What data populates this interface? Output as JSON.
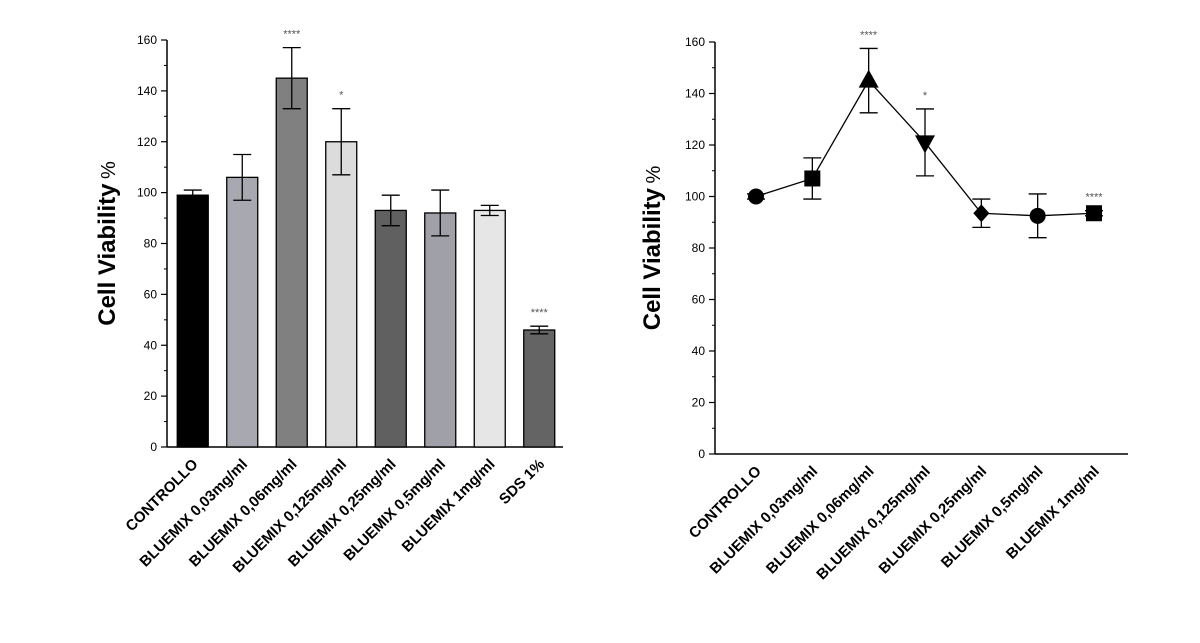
{
  "chart_data": [
    {
      "type": "bar",
      "ylabel": "Cell Viability",
      "ylabel_unit": "%",
      "ylim": [
        0,
        160
      ],
      "yticks": [
        "0",
        "20",
        "40",
        "60",
        "80",
        "100",
        "120",
        "140",
        "160"
      ],
      "categories": [
        "CONTROLLO",
        "BLUEMIX 0,03mg/ml",
        "BLUEMIX 0,06mg/ml",
        "BLUEMIX 0,125mg/ml",
        "BLUEMIX 0,25mg/ml",
        "BLUEMIX 0,5mg/ml",
        "BLUEMIX 1mg/ml",
        "SDS 1%"
      ],
      "values": [
        99,
        106,
        145,
        120,
        93,
        92,
        93,
        46
      ],
      "errors": [
        2,
        9,
        12,
        13,
        6,
        9,
        2,
        1.5
      ],
      "bar_colors": [
        "#000000",
        "#a8a8b0",
        "#808080",
        "#dcdcdc",
        "#606060",
        "#a0a0a8",
        "#e6e6e6",
        "#646464"
      ],
      "significance": [
        "",
        "",
        "****",
        "*",
        "",
        "",
        "",
        "****"
      ],
      "grid": false
    },
    {
      "type": "line",
      "ylabel": "Cell Viability",
      "ylabel_unit": "%",
      "ylim": [
        0,
        160
      ],
      "yticks": [
        "0",
        "20",
        "40",
        "60",
        "80",
        "100",
        "120",
        "140",
        "160"
      ],
      "categories": [
        "CONTROLLO",
        "BLUEMIX 0,03mg/ml",
        "BLUEMIX 0,06mg/ml",
        "BLUEMIX 0,125mg/ml",
        "BLUEMIX 0,25mg/ml",
        "BLUEMIX 0,5mg/ml",
        "BLUEMIX 1mg/ml"
      ],
      "values": [
        100,
        107,
        145,
        121,
        93.5,
        92.5,
        93.5
      ],
      "errors": [
        1,
        8,
        12.5,
        13,
        5.5,
        8.5,
        1
      ],
      "markers": [
        "circle",
        "square",
        "triangle-up",
        "triangle-down",
        "diamond",
        "circle",
        "square"
      ],
      "significance": [
        "",
        "",
        "****",
        "*",
        "",
        "",
        "****"
      ],
      "grid": false
    }
  ]
}
